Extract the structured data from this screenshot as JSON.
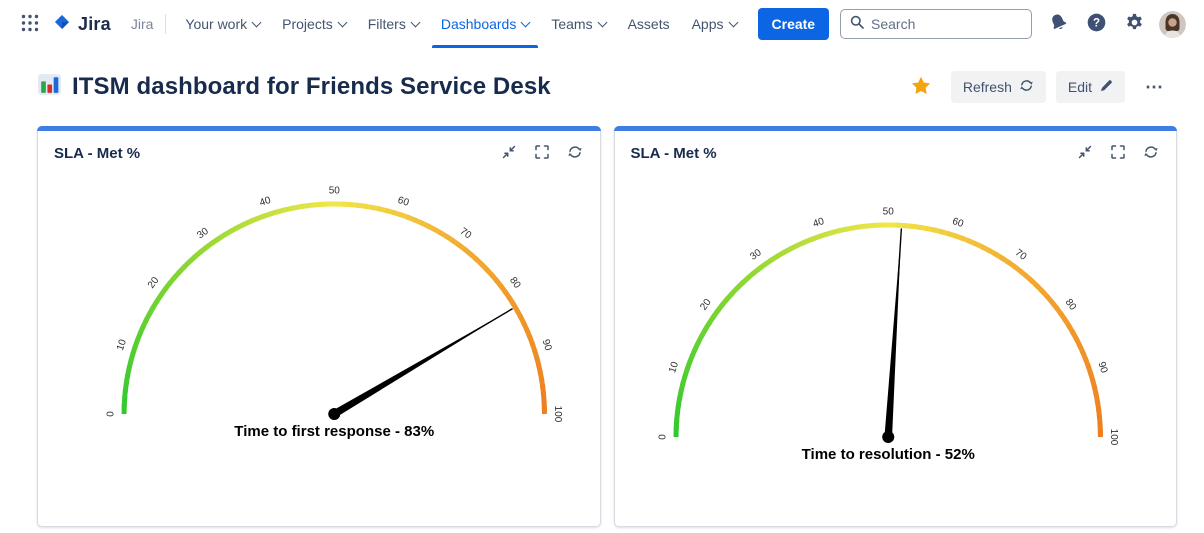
{
  "nav": {
    "logo_text": "Jira",
    "site_label": "Jira",
    "items": [
      {
        "label": "Your work",
        "chevron": true,
        "active": false
      },
      {
        "label": "Projects",
        "chevron": true,
        "active": false
      },
      {
        "label": "Filters",
        "chevron": true,
        "active": false
      },
      {
        "label": "Dashboards",
        "chevron": true,
        "active": true
      },
      {
        "label": "Teams",
        "chevron": true,
        "active": false
      },
      {
        "label": "Assets",
        "chevron": false,
        "active": false
      },
      {
        "label": "Apps",
        "chevron": true,
        "active": false
      }
    ],
    "create_label": "Create",
    "search_placeholder": "Search",
    "icons": [
      "app-switcher-icon",
      "jira-logo-icon",
      "search-icon",
      "notifications-bell-icon",
      "help-icon",
      "settings-gear-icon",
      "user-avatar"
    ]
  },
  "header": {
    "title": "ITSM dashboard for Friends Service Desk",
    "title_icon": "bar-chart-icon",
    "star_icon": "star-favorite-icon",
    "refresh_label": "Refresh",
    "edit_label": "Edit",
    "more_label": "⋯"
  },
  "panels": [
    {
      "title": "SLA - Met %",
      "icons": [
        "collapse-icon",
        "expand-icon",
        "refresh-icon"
      ]
    },
    {
      "title": "SLA - Met %",
      "icons": [
        "collapse-icon",
        "expand-icon",
        "refresh-icon"
      ]
    }
  ],
  "chart_data": [
    {
      "type": "gauge",
      "title": "SLA - Met %",
      "metric": "Time to first response",
      "label": "Time to first response - 83%",
      "value": 83,
      "min": 0,
      "max": 100,
      "ticks": [
        0,
        10,
        20,
        30,
        40,
        50,
        60,
        70,
        80,
        90,
        100
      ],
      "color_stops": [
        {
          "pos": 0,
          "color": "#2fc92f"
        },
        {
          "pos": 0.3,
          "color": "#9ad934"
        },
        {
          "pos": 0.5,
          "color": "#f0e74a"
        },
        {
          "pos": 0.7,
          "color": "#f2ae33"
        },
        {
          "pos": 1,
          "color": "#ee7e1f"
        }
      ],
      "needle_color": "#000000"
    },
    {
      "type": "gauge",
      "title": "SLA - Met %",
      "metric": "Time to resolution",
      "label": "Time to resolution - 52%",
      "value": 52,
      "min": 0,
      "max": 100,
      "ticks": [
        0,
        10,
        20,
        30,
        40,
        50,
        60,
        70,
        80,
        90,
        100
      ],
      "color_stops": [
        {
          "pos": 0,
          "color": "#2fc92f"
        },
        {
          "pos": 0.3,
          "color": "#9ad934"
        },
        {
          "pos": 0.5,
          "color": "#f0e74a"
        },
        {
          "pos": 0.7,
          "color": "#f2ae33"
        },
        {
          "pos": 1,
          "color": "#ee7e1f"
        }
      ],
      "needle_color": "#000000"
    }
  ],
  "colors": {
    "nav_active": "#0c66e4",
    "create_button": "#0c66e4",
    "panel_accent": "#3e7de2",
    "title_text": "#172b4d",
    "star": "#f2a50c"
  }
}
